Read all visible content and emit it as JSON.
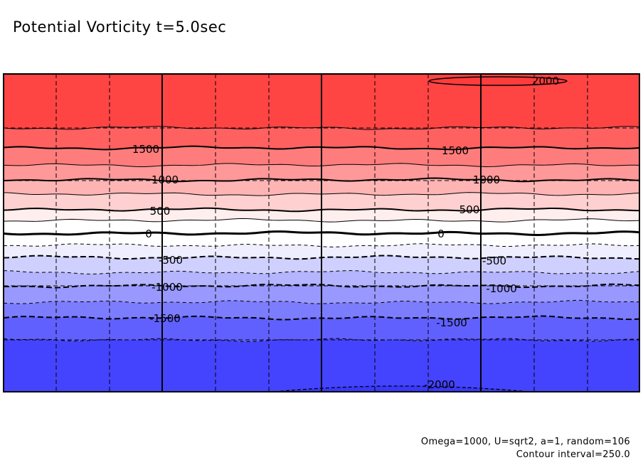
{
  "chart_data": {
    "type": "contour",
    "title": "Potential Vorticity t=5.0sec",
    "contour_interval": 250.0,
    "levels": [
      -2000,
      -1750,
      -1500,
      -1250,
      -1000,
      -750,
      -500,
      -250,
      0,
      250,
      500,
      750,
      1000,
      1250,
      1500,
      1750,
      2000
    ],
    "fill_colors": {
      "above_1750": "#ff4444",
      "1500_1750": "#ff6060",
      "1250_1500": "#ff7c7c",
      "1000_1250": "#ff9898",
      "750_1000": "#ffb4b4",
      "500_750": "#ffd0d0",
      "250_500": "#ffeeee",
      "0_250": "#ffffff",
      "-250_0": "#ffffff",
      "-500_-250": "#eeeeff",
      "-750_-500": "#d0d0ff",
      "-1000_-750": "#b4b4ff",
      "-1250_-1000": "#9898ff",
      "-1500_-1250": "#7c7cff",
      "-1750_-1500": "#6060ff",
      "below_-1750": "#4444ff"
    },
    "contour_labels": [
      "2000",
      "1500",
      "1500",
      "1000",
      "1000",
      "500",
      "500",
      "0",
      "0",
      "-500",
      "-500",
      "-1000",
      "-1000",
      "-1500",
      "-1500",
      "-2000"
    ],
    "negative_contours_dashed": true,
    "grid": true,
    "xlabel": "",
    "ylabel": ""
  },
  "footer": {
    "params": "Omega=1000, U=sqrt2, a=1, random=106",
    "interval": "Contour interval=250.0"
  }
}
